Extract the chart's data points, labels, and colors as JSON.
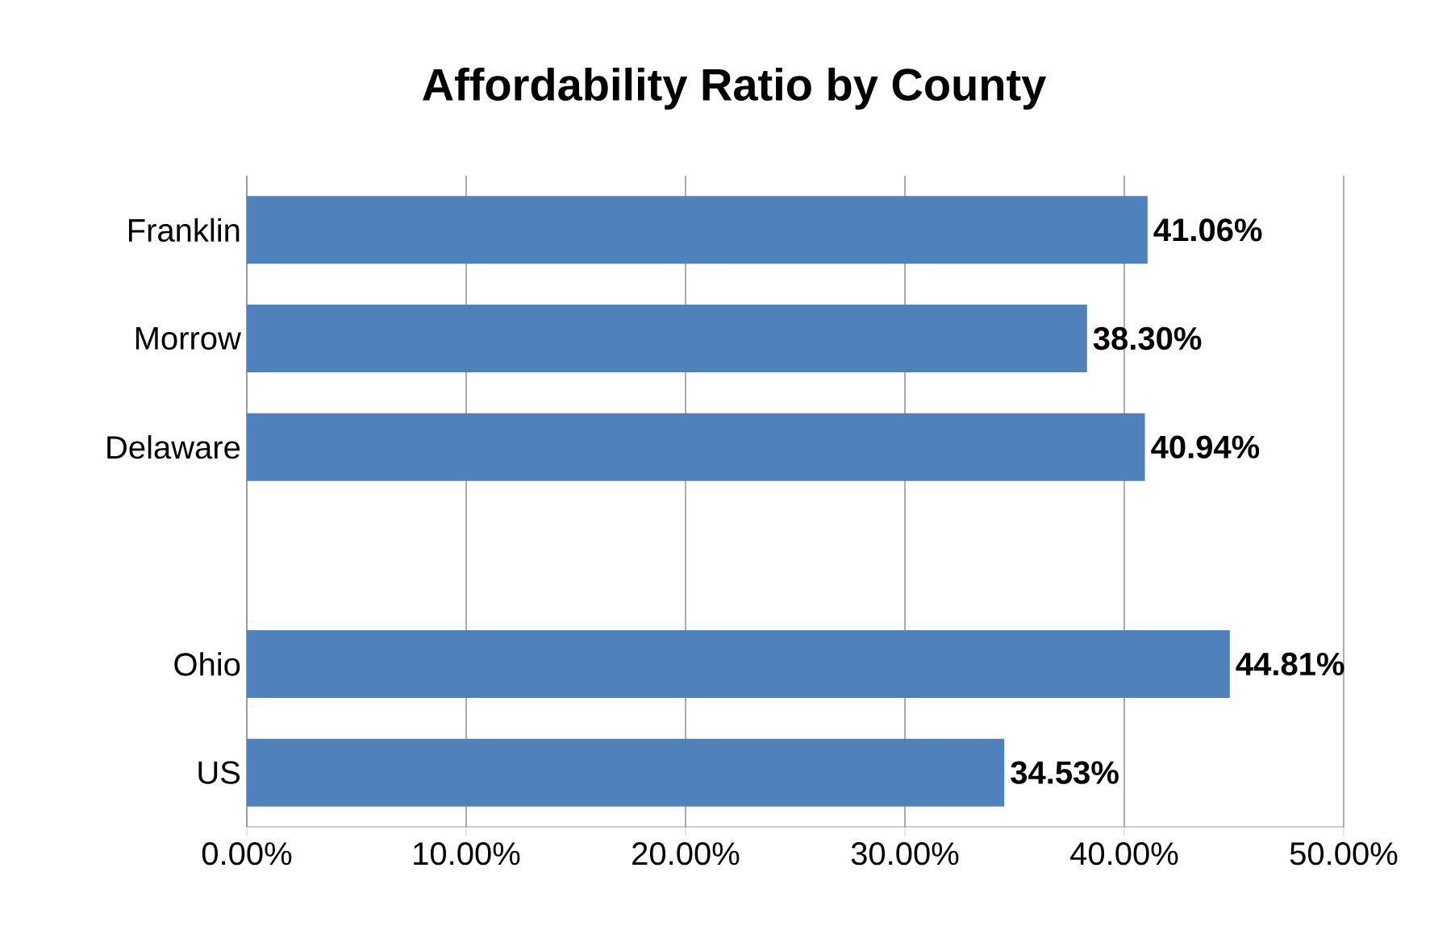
{
  "chart_data": {
    "type": "bar",
    "orientation": "horizontal",
    "title": "Affordability Ratio by County",
    "categories": [
      "Franklin",
      "Morrow",
      "Delaware",
      null,
      "Ohio",
      "US"
    ],
    "values": [
      41.06,
      38.3,
      40.94,
      null,
      44.81,
      34.53
    ],
    "value_labels": [
      "41.06%",
      "38.30%",
      "40.94%",
      null,
      "44.81%",
      "34.53%"
    ],
    "color": "#4f81bd",
    "xlim": [
      0,
      50
    ],
    "xticks": [
      {
        "value": 0,
        "label": "0.00%"
      },
      {
        "value": 10,
        "label": "10.00%"
      },
      {
        "value": 20,
        "label": "20.00%"
      },
      {
        "value": 30,
        "label": "30.00%"
      },
      {
        "value": 40,
        "label": "40.00%"
      },
      {
        "value": 50,
        "label": "50.00%"
      }
    ],
    "grid": "x"
  }
}
